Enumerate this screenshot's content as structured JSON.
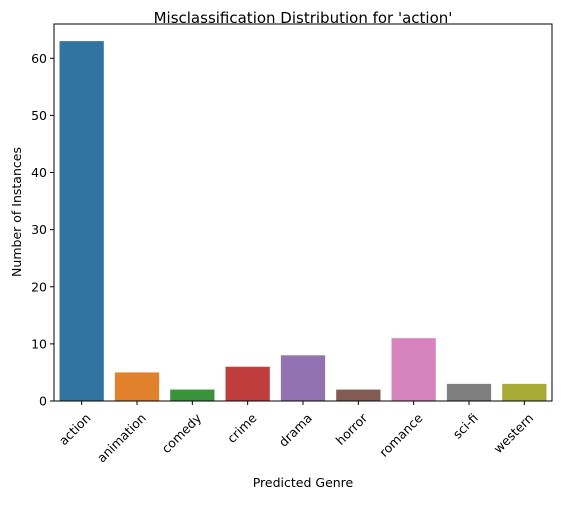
{
  "chart_data": {
    "type": "bar",
    "title": "Misclassification Distribution for 'action'",
    "xlabel": "Predicted Genre",
    "ylabel": "Number of Instances",
    "categories": [
      "action",
      "animation",
      "comedy",
      "crime",
      "drama",
      "horror",
      "romance",
      "sci-fi",
      "western"
    ],
    "values": [
      63,
      5,
      2,
      6,
      8,
      2,
      11,
      3,
      3
    ],
    "colors": [
      "#3274a1",
      "#e1812c",
      "#3a923a",
      "#c03d3e",
      "#9372b2",
      "#845b53",
      "#d684bd",
      "#7f7f7f",
      "#a9aa35"
    ],
    "ylim": [
      0,
      66
    ],
    "yticks": [
      0,
      10,
      20,
      30,
      40,
      50,
      60
    ],
    "grid": false,
    "legend": "none"
  }
}
